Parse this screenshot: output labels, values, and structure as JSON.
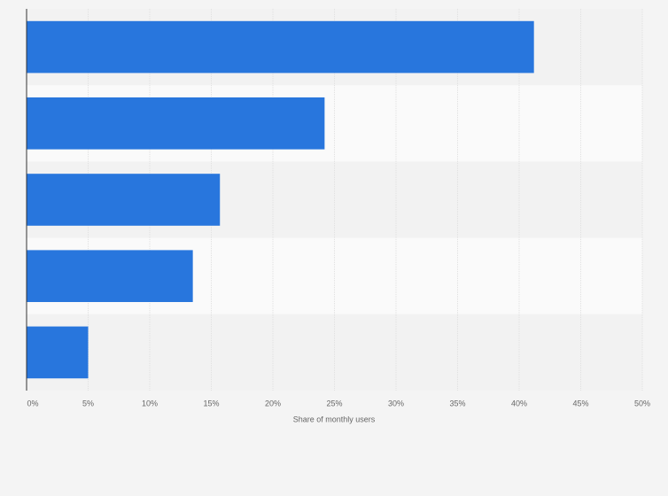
{
  "chart_data": {
    "type": "bar",
    "orientation": "horizontal",
    "categories": [
      null,
      null,
      null,
      null,
      null
    ],
    "values": [
      41.2,
      24.2,
      15.7,
      13.5,
      5.0
    ],
    "color": "#2876dd",
    "xlabel": "Share of monthly users",
    "xlim": [
      0,
      50
    ],
    "xticks": [
      {
        "value": 0,
        "label": "0%"
      },
      {
        "value": 5,
        "label": "5%"
      },
      {
        "value": 10,
        "label": "10%"
      },
      {
        "value": 15,
        "label": "15%"
      },
      {
        "value": 20,
        "label": "20%"
      },
      {
        "value": 25,
        "label": "25%"
      },
      {
        "value": 30,
        "label": "30%"
      },
      {
        "value": 35,
        "label": "35%"
      },
      {
        "value": 40,
        "label": "40%"
      },
      {
        "value": 45,
        "label": "45%"
      },
      {
        "value": 50,
        "label": "50%"
      }
    ],
    "grid": true
  }
}
